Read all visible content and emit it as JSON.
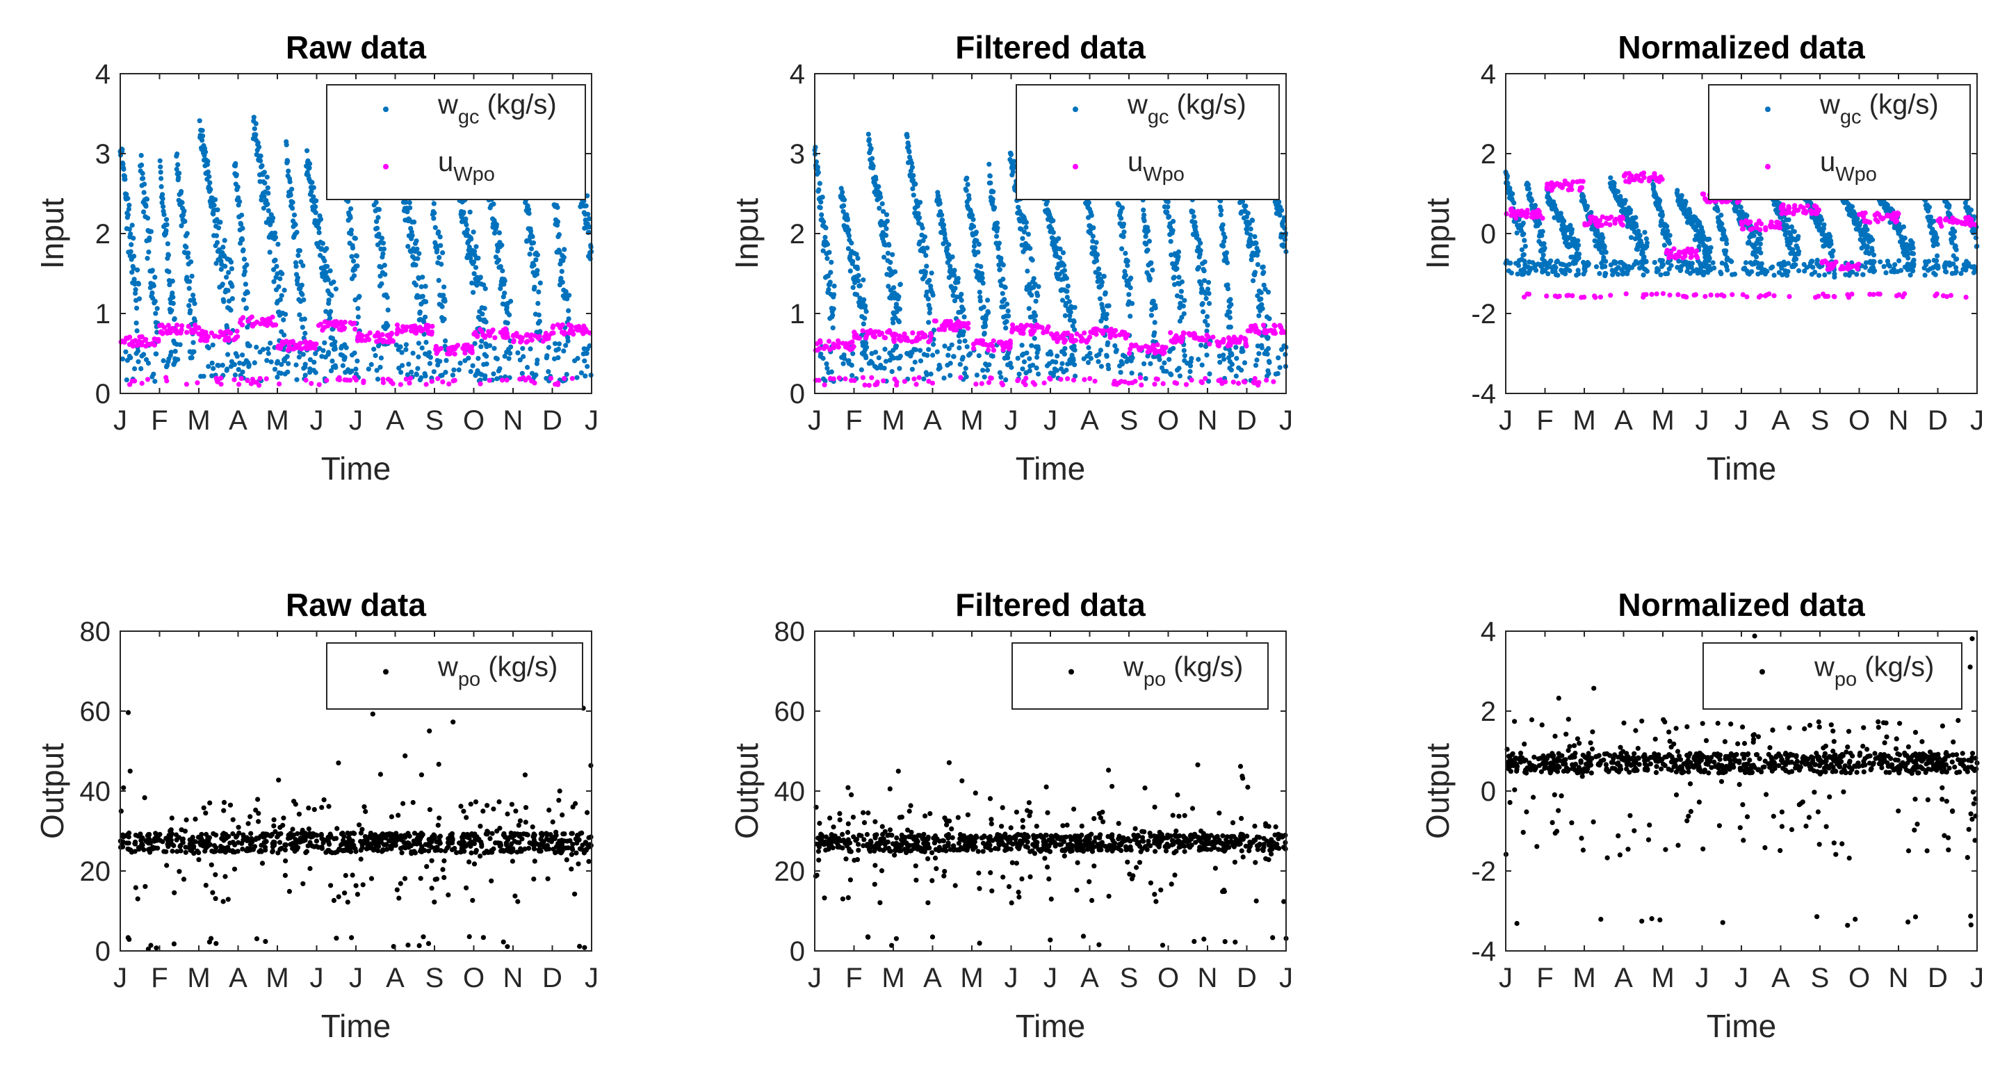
{
  "colors": {
    "wgc": "#0072BD",
    "uwpo": "#FF00FF",
    "wpo": "#000000"
  },
  "chart_data": [
    {
      "type": "scatter",
      "panel": "input-raw",
      "title": "Raw data",
      "xlabel": "Time",
      "ylabel": "Input",
      "ylim": [
        0,
        4
      ],
      "yticks": [
        "0",
        "1",
        "2",
        "3",
        "4"
      ],
      "xticks": [
        "J",
        "F",
        "M",
        "A",
        "M",
        "J",
        "J",
        "A",
        "S",
        "O",
        "N",
        "D",
        "J"
      ],
      "legend": {
        "placement": "top-right",
        "entries": [
          {
            "main": "w",
            "sub": "gc",
            "suffix": " (kg/s)",
            "color_key": "wgc"
          },
          {
            "main": "u",
            "sub": "Wpo",
            "suffix": "",
            "color_key": "uwpo"
          }
        ]
      },
      "series": [
        {
          "name": "w_gc (kg/s)",
          "color_key": "wgc",
          "kind": "flow",
          "high": 3.4,
          "low": 0.15,
          "spread": 0.35,
          "seed": 11
        },
        {
          "name": "u_Wpo",
          "color_key": "uwpo",
          "kind": "steps",
          "values": [
            0.65,
            0.8,
            0.72,
            0.9,
            0.6,
            0.85,
            0.7,
            0.8,
            0.55,
            0.75,
            0.7,
            0.8
          ],
          "floor": 0.1,
          "seed": 12
        }
      ]
    },
    {
      "type": "scatter",
      "panel": "input-filtered",
      "title": "Filtered data",
      "xlabel": "Time",
      "ylabel": "Input",
      "ylim": [
        0,
        4
      ],
      "yticks": [
        "0",
        "1",
        "2",
        "3",
        "4"
      ],
      "xticks": [
        "J",
        "F",
        "M",
        "A",
        "M",
        "J",
        "J",
        "A",
        "S",
        "O",
        "N",
        "D",
        "J"
      ],
      "legend": {
        "placement": "top-right",
        "entries": [
          {
            "main": "w",
            "sub": "gc",
            "suffix": " (kg/s)",
            "color_key": "wgc"
          },
          {
            "main": "u",
            "sub": "Wpo",
            "suffix": "",
            "color_key": "uwpo"
          }
        ]
      },
      "series": [
        {
          "name": "w_gc (kg/s)",
          "color_key": "wgc",
          "kind": "flow",
          "high": 3.2,
          "low": 0.15,
          "spread": 0.3,
          "seed": 21
        },
        {
          "name": "u_Wpo",
          "color_key": "uwpo",
          "kind": "steps",
          "values": [
            0.6,
            0.75,
            0.7,
            0.85,
            0.6,
            0.8,
            0.7,
            0.75,
            0.55,
            0.7,
            0.65,
            0.8
          ],
          "floor": 0.1,
          "seed": 22
        }
      ]
    },
    {
      "type": "scatter",
      "panel": "input-normalized",
      "title": "Normalized data",
      "xlabel": "Time",
      "ylabel": "Input",
      "ylim": [
        -4,
        4
      ],
      "yticks": [
        "-4",
        "-2",
        "0",
        "2",
        "4"
      ],
      "xticks": [
        "J",
        "F",
        "M",
        "A",
        "M",
        "J",
        "J",
        "A",
        "S",
        "O",
        "N",
        "D",
        "J"
      ],
      "legend": {
        "placement": "top-right",
        "entries": [
          {
            "main": "w",
            "sub": "gc",
            "suffix": " (kg/s)",
            "color_key": "wgc"
          },
          {
            "main": "u",
            "sub": "Wpo",
            "suffix": "",
            "color_key": "uwpo"
          }
        ]
      },
      "series": [
        {
          "name": "w_gc (kg/s)",
          "color_key": "wgc",
          "kind": "flow",
          "high": 1.5,
          "low": -1.05,
          "spread": 0.3,
          "seed": 31
        },
        {
          "name": "u_Wpo",
          "color_key": "uwpo",
          "kind": "steps",
          "values": [
            0.5,
            1.2,
            0.3,
            1.4,
            -0.5,
            0.9,
            0.2,
            0.6,
            -0.8,
            0.4,
            1.1,
            0.3
          ],
          "floor": -1.6,
          "seed": 32
        }
      ]
    },
    {
      "type": "scatter",
      "panel": "output-raw",
      "title": "Raw data",
      "xlabel": "Time",
      "ylabel": "Output",
      "ylim": [
        0,
        80
      ],
      "yticks": [
        "0",
        "20",
        "40",
        "60",
        "80"
      ],
      "xticks": [
        "J",
        "F",
        "M",
        "A",
        "M",
        "J",
        "J",
        "A",
        "S",
        "O",
        "N",
        "D",
        "J"
      ],
      "legend": {
        "placement": "top-right",
        "entries": [
          {
            "main": "w",
            "sub": "po",
            "suffix": " (kg/s)",
            "color_key": "wpo"
          }
        ]
      },
      "series": [
        {
          "name": "w_po (kg/s)",
          "color_key": "wpo",
          "kind": "output",
          "base": 27,
          "spread": 2.5,
          "spike": 38,
          "spikeTop": 64,
          "low": 12,
          "zero": 2,
          "seed": 41
        }
      ]
    },
    {
      "type": "scatter",
      "panel": "output-filtered",
      "title": "Filtered data",
      "xlabel": "Time",
      "ylabel": "Output",
      "ylim": [
        0,
        80
      ],
      "yticks": [
        "0",
        "20",
        "40",
        "60",
        "80"
      ],
      "xticks": [
        "J",
        "F",
        "M",
        "A",
        "M",
        "J",
        "J",
        "A",
        "S",
        "O",
        "N",
        "D",
        "J"
      ],
      "legend": {
        "placement": "top-right",
        "entries": [
          {
            "main": "w",
            "sub": "po",
            "suffix": " (kg/s)",
            "color_key": "wpo"
          }
        ]
      },
      "series": [
        {
          "name": "w_po (kg/s)",
          "color_key": "wpo",
          "kind": "output",
          "base": 27,
          "spread": 2.2,
          "spike": 36,
          "spikeTop": 48,
          "low": 12,
          "zero": 2,
          "seed": 51
        }
      ]
    },
    {
      "type": "scatter",
      "panel": "output-normalized",
      "title": "Normalized data",
      "xlabel": "Time",
      "ylabel": "Output",
      "ylim": [
        -4,
        4
      ],
      "yticks": [
        "-4",
        "-2",
        "0",
        "2",
        "4"
      ],
      "xticks": [
        "J",
        "F",
        "M",
        "A",
        "M",
        "J",
        "J",
        "A",
        "S",
        "O",
        "N",
        "D",
        "J"
      ],
      "legend": {
        "placement": "top-right",
        "entries": [
          {
            "main": "w",
            "sub": "po",
            "suffix": " (kg/s)",
            "color_key": "wpo"
          }
        ]
      },
      "series": [
        {
          "name": "w_po (kg/s)",
          "color_key": "wpo",
          "kind": "output",
          "base": 0.7,
          "spread": 0.25,
          "spike": 1.8,
          "spikeTop": 3.9,
          "low": -1.8,
          "zero": -3.3,
          "seed": 61
        }
      ]
    }
  ]
}
